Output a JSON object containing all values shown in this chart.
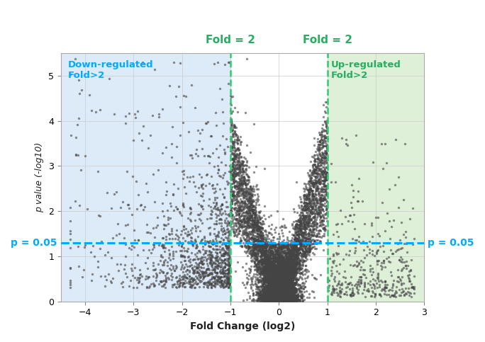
{
  "xlim": [
    -4.5,
    3.0
  ],
  "ylim": [
    0,
    5.5
  ],
  "xticks": [
    -4,
    -3,
    -2,
    -1,
    0,
    1,
    2,
    3
  ],
  "yticks": [
    0,
    1,
    2,
    3,
    4,
    5
  ],
  "xlabel": "Fold Change (log2)",
  "ylabel": "p value (-log10)",
  "fold_threshold": 1.0,
  "pvalue_threshold": 1.301,
  "left_bg_color": "#ddeaf7",
  "right_bg_color": "#dff0d8",
  "left_label": "Down-regulated\nFold>2",
  "right_label": "Up-regulated\nFold>2",
  "left_fold_label": "Fold = 2",
  "right_fold_label": "Fold = 2",
  "pvalue_label": "p = 0.05",
  "vline_color": "#2ecc71",
  "hline_color": "#00aaff",
  "dot_color": "#444444",
  "dot_alpha": 0.6,
  "dot_size": 6,
  "seed": 42,
  "label_color_green": "#27ae60",
  "label_color_blue": "#00aaff",
  "bg_white": "#ffffff"
}
